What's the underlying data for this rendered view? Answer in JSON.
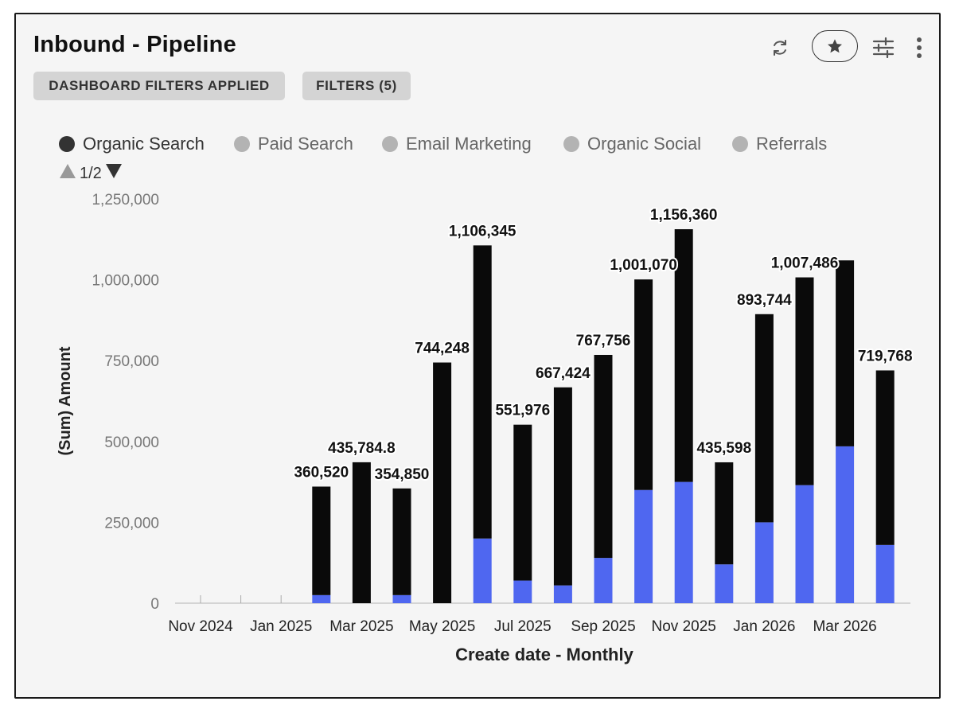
{
  "header": {
    "title": "Inbound - Pipeline",
    "chip_dashboard_filters": "DASHBOARD FILTERS APPLIED",
    "chip_filters": "FILTERS (5)"
  },
  "toolbar": {
    "icons": [
      "refresh-icon",
      "star-icon",
      "sliders-icon",
      "more-vertical-icon"
    ]
  },
  "legend": {
    "items": [
      {
        "label": "Organic Search",
        "active": true
      },
      {
        "label": "Paid Search",
        "active": false
      },
      {
        "label": "Email Marketing",
        "active": false
      },
      {
        "label": "Organic Social",
        "active": false
      },
      {
        "label": "Referrals",
        "active": false
      }
    ],
    "page": "1/2"
  },
  "colors": {
    "series_dark": "#0a0a0a",
    "series_blue": "#4f67f0",
    "legend_active": "#333333",
    "legend_inactive": "#b3b3b3",
    "card_bg": "#f5f5f5",
    "chip_bg": "#d4d4d4"
  },
  "chart_data": {
    "type": "bar",
    "stacked": true,
    "xlabel": "Create date - Monthly",
    "ylabel": "(Sum) Amount",
    "ylim": [
      0,
      1250000
    ],
    "yticks": [
      0,
      250000,
      500000,
      750000,
      1000000,
      1250000
    ],
    "ytick_labels": [
      "0",
      "250,000",
      "500,000",
      "750,000",
      "1,000,000",
      "1,250,000"
    ],
    "categories": [
      "Nov 2024",
      "Dec 2024",
      "Jan 2025",
      "Feb 2025",
      "Mar 2025",
      "Apr 2025",
      "May 2025",
      "Jun 2025",
      "Jul 2025",
      "Aug 2025",
      "Sep 2025",
      "Oct 2025",
      "Nov 2025",
      "Dec 2025",
      "Jan 2026",
      "Feb 2026",
      "Mar 2026",
      "Apr 2026"
    ],
    "xtick_labels": [
      "Nov 2024",
      "Jan 2025",
      "Mar 2025",
      "May 2025",
      "Jul 2025",
      "Sep 2025",
      "Nov 2025",
      "Jan 2026",
      "Mar 2026"
    ],
    "series": [
      {
        "values": [
          0,
          0,
          0,
          25000,
          0,
          25000,
          0,
          200000,
          70000,
          55000,
          140000,
          350000,
          375000,
          120000,
          250000,
          365000,
          485000,
          180000
        ]
      },
      {
        "values": [
          0,
          0,
          0,
          335520,
          435784.8,
          329850,
          744248,
          906345,
          481976,
          612424,
          627756,
          651070,
          781360,
          315598,
          643744,
          642486,
          575000,
          539768
        ]
      }
    ],
    "totals": [
      0,
      0,
      0,
      360520,
      435784.8,
      354850,
      744248,
      1106345,
      551976,
      667424,
      767756,
      1001070,
      1156360,
      435598,
      893744,
      1007486,
      1060000,
      719768
    ],
    "data_labels": [
      "",
      "",
      "",
      "360,520",
      "435,784.8",
      "354,850",
      "744,248",
      "1,106,345",
      "551,976",
      "667,424",
      "767,756",
      "1,001,070",
      "1,156,360",
      "435,598",
      "893,744",
      "1,007,486",
      "",
      "719,768"
    ],
    "grid": false
  }
}
